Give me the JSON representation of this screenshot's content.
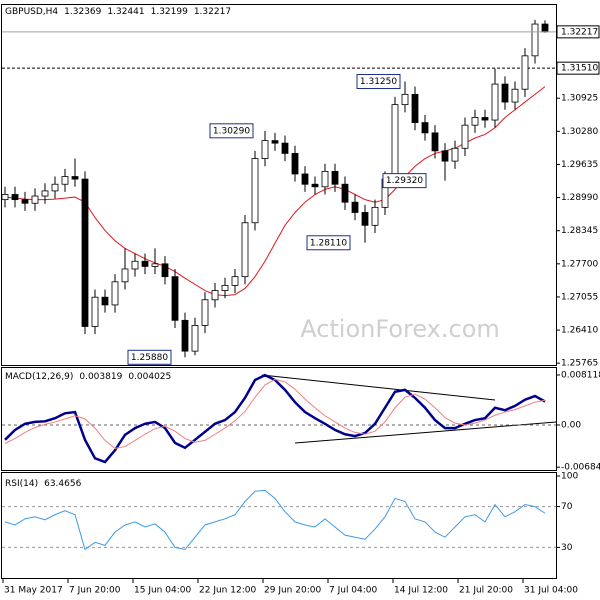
{
  "chart_data": [
    {
      "type": "candlestick",
      "title": "GBPUSD,H4",
      "watermark": "ActionForex.com",
      "x": [
        0,
        1,
        2,
        3,
        4,
        5,
        6,
        7,
        8,
        9,
        10,
        11,
        12,
        13,
        14,
        15,
        16,
        17,
        18,
        19,
        20,
        21,
        22,
        23,
        24,
        25,
        26,
        27,
        28,
        29,
        30,
        31,
        32,
        33,
        34,
        35,
        36,
        37,
        38,
        39,
        40,
        41,
        42,
        43,
        44,
        45,
        46,
        47,
        48,
        49,
        50,
        51,
        52,
        53,
        54
      ],
      "open": [
        1.2895,
        1.2905,
        1.2895,
        1.2888,
        1.2902,
        1.2912,
        1.2925,
        1.294,
        1.2935,
        1.2648,
        1.2705,
        1.269,
        1.2735,
        1.276,
        1.2775,
        1.2765,
        1.277,
        1.2745,
        1.266,
        1.26,
        1.265,
        1.27,
        1.2718,
        1.2728,
        1.2745,
        1.285,
        1.2975,
        1.301,
        1.3005,
        1.2985,
        1.2945,
        1.2925,
        1.292,
        1.295,
        1.2925,
        1.289,
        1.287,
        1.2845,
        1.288,
        1.2935,
        1.308,
        1.31,
        1.3045,
        1.3025,
        1.299,
        1.297,
        1.2995,
        1.304,
        1.3055,
        1.305,
        1.312,
        1.3085,
        1.311,
        1.3175,
        1.32369
      ],
      "high": [
        1.292,
        1.292,
        1.291,
        1.2917,
        1.2927,
        1.294,
        1.2955,
        1.2975,
        1.295,
        1.272,
        1.272,
        1.275,
        1.28,
        1.279,
        1.279,
        1.28,
        1.2785,
        1.276,
        1.2675,
        1.2665,
        1.2715,
        1.2733,
        1.2743,
        1.276,
        1.2865,
        1.299,
        1.3029,
        1.3025,
        1.302,
        1.3,
        1.296,
        1.294,
        1.2965,
        1.2965,
        1.294,
        1.2905,
        1.2885,
        1.2895,
        1.295,
        1.3095,
        1.3125,
        1.3115,
        1.306,
        1.304,
        1.3005,
        1.301,
        1.3055,
        1.307,
        1.307,
        1.315,
        1.3135,
        1.3125,
        1.319,
        1.3245,
        1.32441
      ],
      "low": [
        1.288,
        1.288,
        1.2873,
        1.2873,
        1.2887,
        1.2897,
        1.291,
        1.292,
        1.2633,
        1.2633,
        1.2675,
        1.2675,
        1.272,
        1.2745,
        1.275,
        1.275,
        1.273,
        1.2645,
        1.2588,
        1.2592,
        1.2635,
        1.2685,
        1.2703,
        1.2713,
        1.273,
        1.2835,
        1.296,
        1.299,
        1.297,
        1.293,
        1.291,
        1.2905,
        1.2905,
        1.291,
        1.2875,
        1.2855,
        1.2811,
        1.283,
        1.2865,
        1.292,
        1.3065,
        1.303,
        1.301,
        1.2975,
        1.2932,
        1.2955,
        1.298,
        1.3025,
        1.3035,
        1.3035,
        1.307,
        1.307,
        1.3095,
        1.316,
        1.32199
      ],
      "close": [
        1.2905,
        1.2895,
        1.2888,
        1.2902,
        1.2912,
        1.2925,
        1.294,
        1.2935,
        1.2648,
        1.2705,
        1.269,
        1.2735,
        1.276,
        1.2775,
        1.2765,
        1.277,
        1.2745,
        1.266,
        1.26,
        1.265,
        1.27,
        1.2718,
        1.2728,
        1.2745,
        1.285,
        1.2975,
        1.301,
        1.3005,
        1.2985,
        1.2945,
        1.2925,
        1.292,
        1.295,
        1.2925,
        1.289,
        1.287,
        1.2845,
        1.288,
        1.2935,
        1.308,
        1.31,
        1.3045,
        1.3025,
        1.299,
        1.297,
        1.2995,
        1.304,
        1.3055,
        1.305,
        1.312,
        1.3085,
        1.311,
        1.3175,
        1.32369,
        1.32217
      ],
      "up_color": "#ffffff",
      "down_color": "#000000",
      "wick_color": "#000000",
      "ma": {
        "color": "#e3171d",
        "values": [
          1.29,
          1.2898,
          1.2896,
          1.2895,
          1.2895,
          1.2896,
          1.2898,
          1.29,
          1.289,
          1.286,
          1.2835,
          1.2815,
          1.28,
          1.279,
          1.278,
          1.2772,
          1.2765,
          1.2755,
          1.2742,
          1.273,
          1.2718,
          1.271,
          1.2708,
          1.271,
          1.2722,
          1.2745,
          1.2775,
          1.281,
          1.2845,
          1.287,
          1.289,
          1.2905,
          1.2915,
          1.292,
          1.2915,
          1.2905,
          1.2895,
          1.289,
          1.2895,
          1.2915,
          1.294,
          1.296,
          1.2975,
          1.2985,
          1.299,
          1.2995,
          1.3005,
          1.3015,
          1.3022,
          1.3035,
          1.3055,
          1.307,
          1.3085,
          1.31,
          1.3115
        ]
      },
      "last_price_line": true,
      "levels": [
        {
          "value": 1.3151,
          "label": "1.31510"
        }
      ],
      "annotations": [
        {
          "value": 1.3125,
          "label": "1.31250"
        },
        {
          "value": 1.3029,
          "label": "1.30290"
        },
        {
          "value": 1.2932,
          "label": "1.29320"
        },
        {
          "value": 1.2811,
          "label": "1.28110"
        },
        {
          "value": 1.2588,
          "label": "1.25880"
        }
      ],
      "xlim": [
        -0.5,
        55.1
      ],
      "ylim": [
        1.2573,
        1.3274
      ],
      "yticks": [
        1.30925,
        {
          "value": 1.3028,
          "label": "1.30280"
        },
        1.29635,
        {
          "value": 1.2899,
          "label": "1.28990"
        },
        1.28345,
        {
          "value": 1.277,
          "label": "1.27700"
        },
        1.27055,
        {
          "value": 1.2641,
          "label": "1.26410"
        },
        1.25765
      ],
      "xticks": [
        {
          "value": -0.2,
          "label": "31 May 2017"
        },
        {
          "value": 6.3,
          "label": "7 Jun 20:00"
        },
        {
          "value": 12.8,
          "label": "15 Jun 04:00"
        },
        {
          "value": 19.3,
          "label": "22 Jun 12:00"
        },
        {
          "value": 25.8,
          "label": "29 Jun 20:00"
        },
        {
          "value": 32.3,
          "label": "7 Jul 04:00"
        },
        {
          "value": 38.8,
          "label": "14 Jul 12:00"
        },
        {
          "value": 45.3,
          "label": "21 Jul 20:00"
        },
        {
          "value": 51.8,
          "label": "31 Jul 04:00"
        }
      ],
      "grid": false
    },
    {
      "type": "line",
      "title": "MACD(12,26,9)",
      "series": [
        {
          "color": "#00008b",
          "width": 2.5,
          "values": [
            -0.0024,
            -0.0008,
            0.0002,
            0.0005,
            0.0006,
            0.0011,
            0.0019,
            0.0021,
            -0.0024,
            -0.0054,
            -0.006,
            -0.0041,
            -0.0016,
            -0.0005,
            0.0002,
            0.0005,
            -0.0005,
            -0.0029,
            -0.0037,
            -0.0024,
            -0.0011,
            0.0002,
            0.0008,
            0.0021,
            0.0044,
            0.0073,
            0.0081,
            0.0073,
            0.0057,
            0.0037,
            0.0021,
            0.0011,
            0.0002,
            -0.0008,
            -0.0015,
            -0.0018,
            -0.0013,
            0.0002,
            0.0028,
            0.0054,
            0.0057,
            0.0044,
            0.0028,
            0.0008,
            -0.0005,
            -0.0005,
            0.0002,
            0.0008,
            0.0011,
            0.0028,
            0.0024,
            0.0031,
            0.0041,
            0.0047,
            0.003819
          ]
        },
        {
          "color": "#f08080",
          "width": 1,
          "values": [
            -0.003,
            -0.0022,
            -0.0012,
            -0.0004,
            0.0001,
            0.0005,
            0.001,
            0.0015,
            0.001,
            -0.0005,
            -0.0025,
            -0.0038,
            -0.0035,
            -0.0025,
            -0.0015,
            -0.0006,
            -0.0002,
            -0.001,
            -0.0022,
            -0.0028,
            -0.0025,
            -0.0015,
            -0.0005,
            0.0007,
            0.0022,
            0.0045,
            0.0065,
            0.0074,
            0.007,
            0.0058,
            0.0042,
            0.0028,
            0.0015,
            0.0005,
            -0.0005,
            -0.0012,
            -0.0015,
            -0.001,
            0.0005,
            0.0028,
            0.0045,
            0.005,
            0.0042,
            0.0028,
            0.0012,
            0.0003,
            0.0,
            0.0003,
            0.0008,
            0.0016,
            0.0021,
            0.0025,
            0.0031,
            0.0037,
            0.004025
          ]
        }
      ],
      "ylim": [
        -0.0073,
        0.00925
      ],
      "yticks": [
        0.008118,
        {
          "value": 0,
          "label": "0.00"
        },
        -0.006844
      ],
      "zero_line": true,
      "grid": false
    },
    {
      "type": "line",
      "title": "RSI(14)",
      "series": [
        {
          "color": "#3d9be9",
          "width": 1,
          "values": [
            55,
            52,
            58,
            60,
            57,
            62,
            66,
            62,
            28,
            35,
            32,
            45,
            52,
            55,
            50,
            53,
            45,
            30,
            28,
            40,
            52,
            55,
            58,
            62,
            75,
            85,
            86,
            78,
            65,
            55,
            52,
            50,
            58,
            50,
            42,
            40,
            38,
            48,
            60,
            78,
            75,
            58,
            55,
            45,
            40,
            50,
            60,
            62,
            55,
            72,
            60,
            65,
            72,
            70,
            63.4656
          ]
        }
      ],
      "ylim": [
        0,
        100
      ],
      "yticks": [
        100,
        70,
        30
      ],
      "grid": "dashed"
    }
  ]
}
